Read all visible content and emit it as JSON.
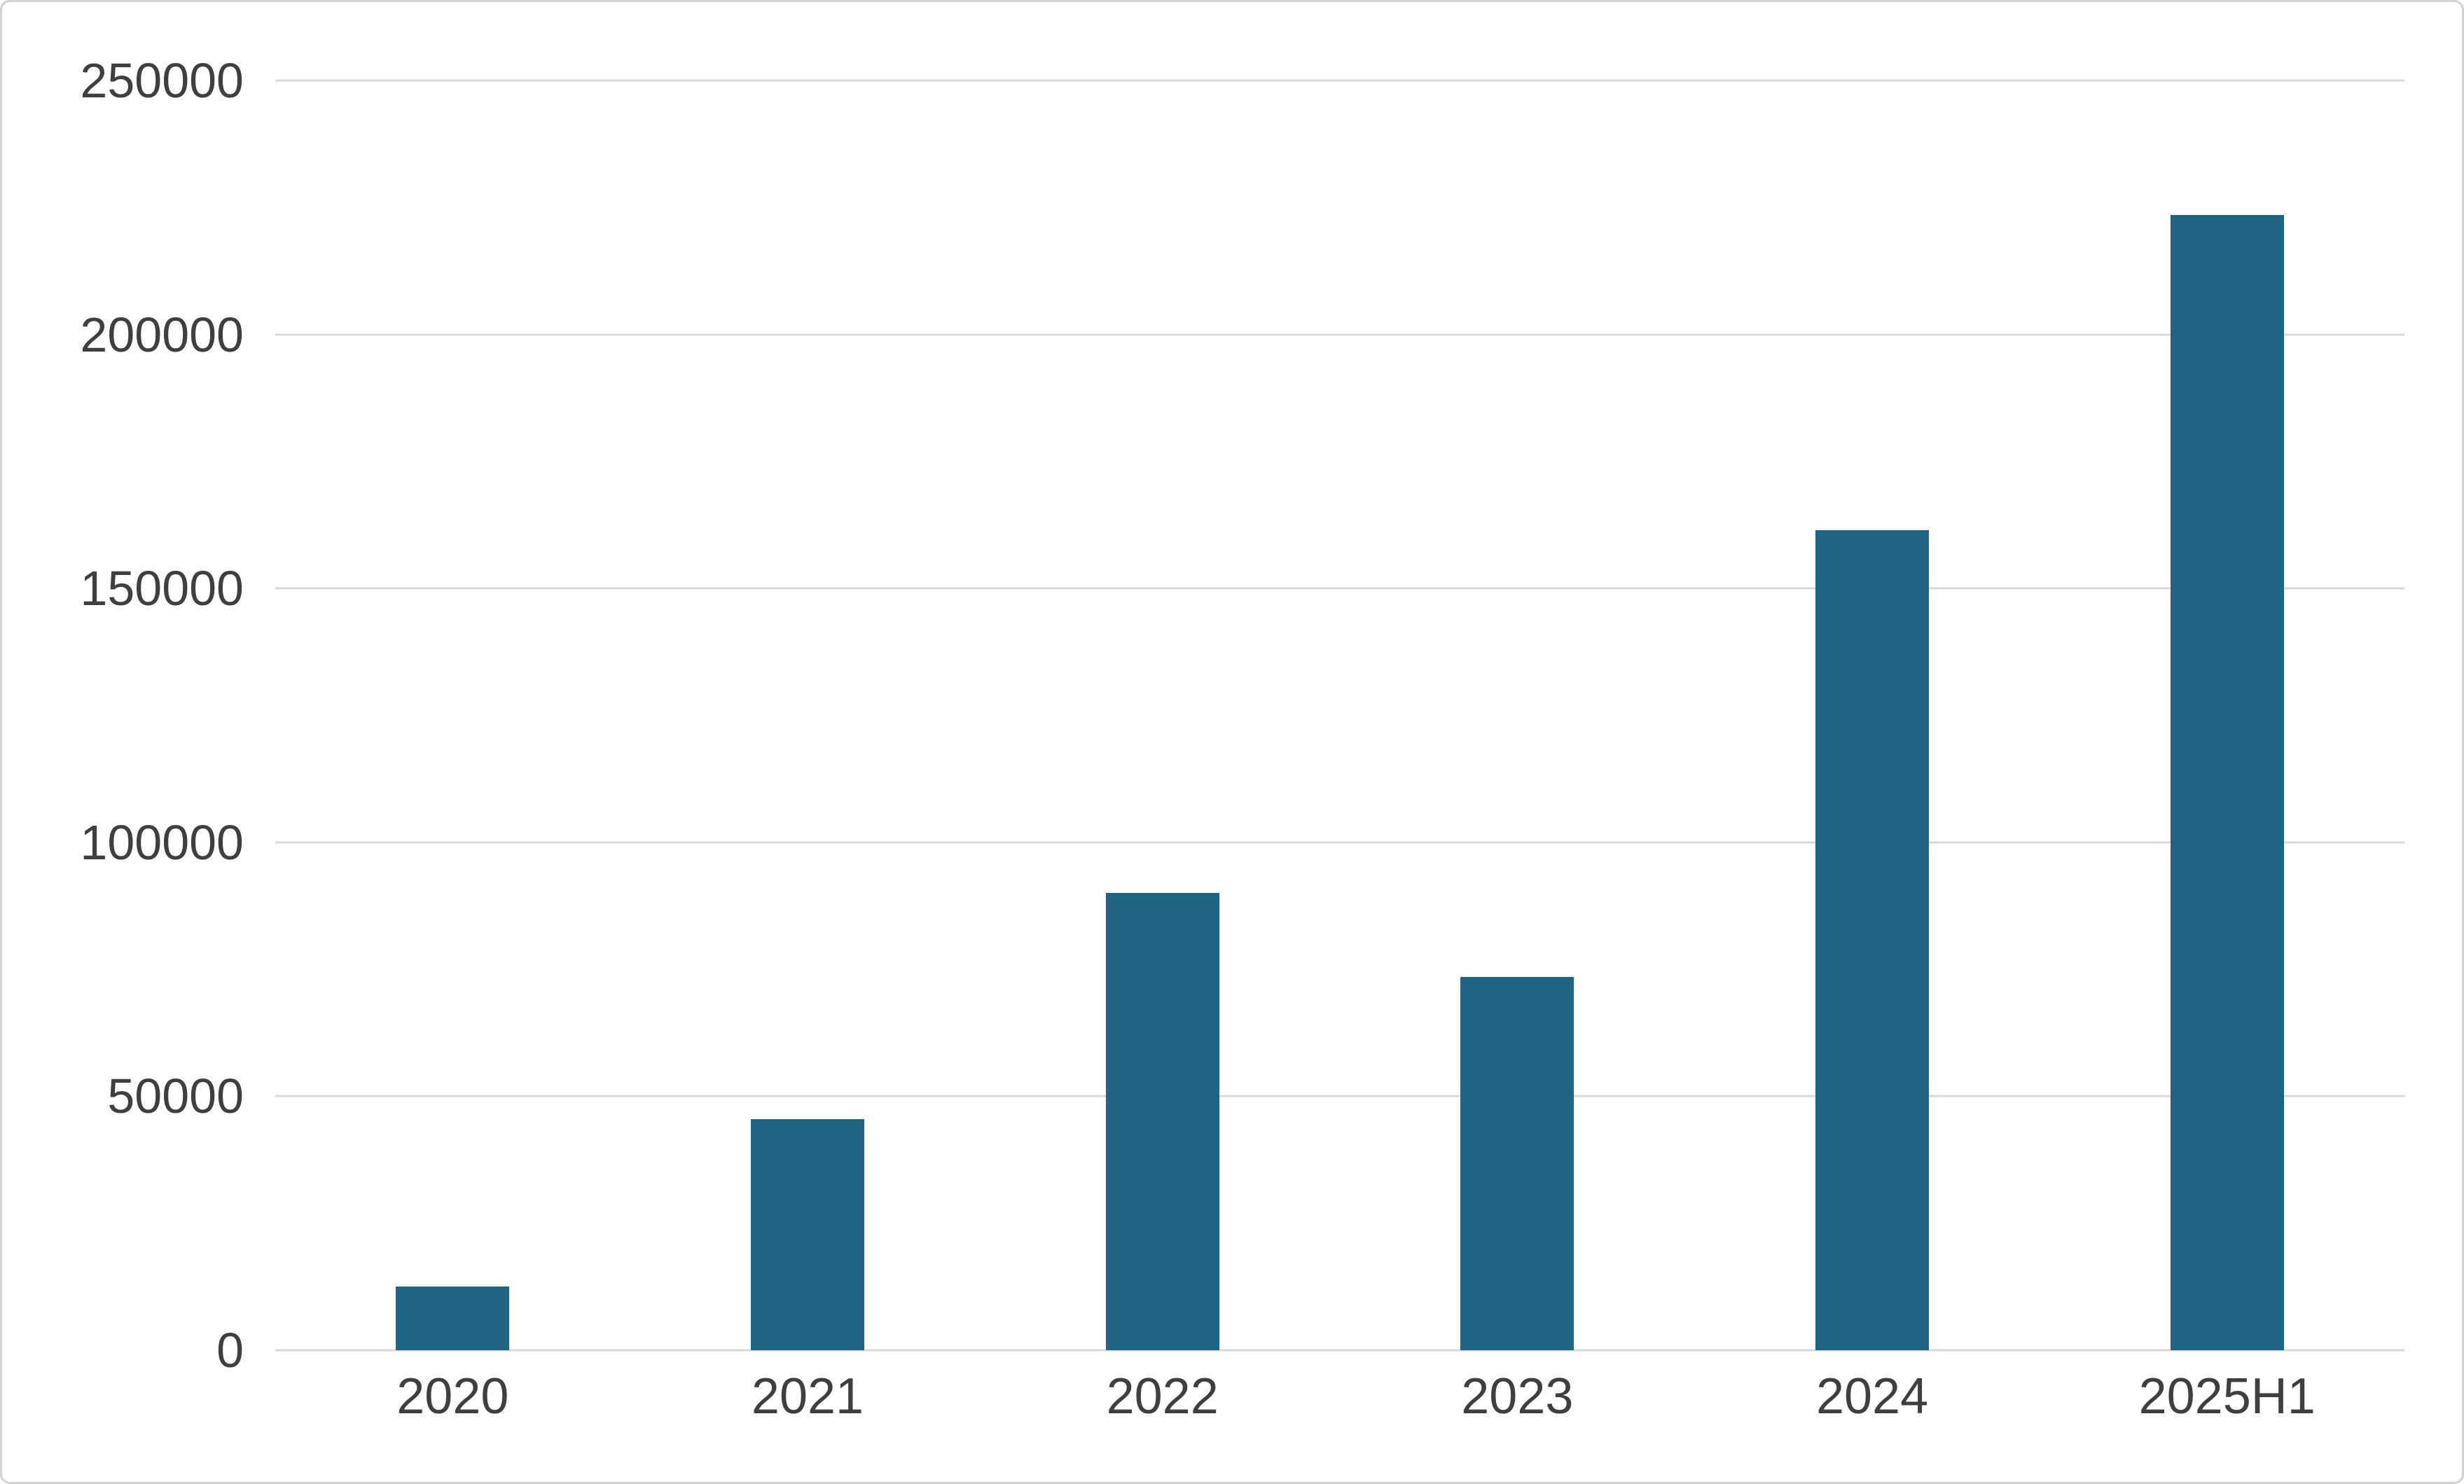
{
  "chart_data": {
    "type": "bar",
    "title": "",
    "categories": [
      "2020",
      "2021",
      "2022",
      "2023",
      "2024",
      "2025H1"
    ],
    "values": [
      12500,
      45500,
      90000,
      73500,
      161500,
      223500
    ],
    "ylim": [
      0,
      250000
    ],
    "yticks": [
      0,
      50000,
      100000,
      150000,
      200000,
      250000
    ],
    "xlabel": "",
    "ylabel": "",
    "grid": "horizontal",
    "legend": "none",
    "bar_color": "#1f6482",
    "gridline_color": "#d9d9d9",
    "label_color": "#3f3f3f",
    "background_color": "#ffffff"
  }
}
